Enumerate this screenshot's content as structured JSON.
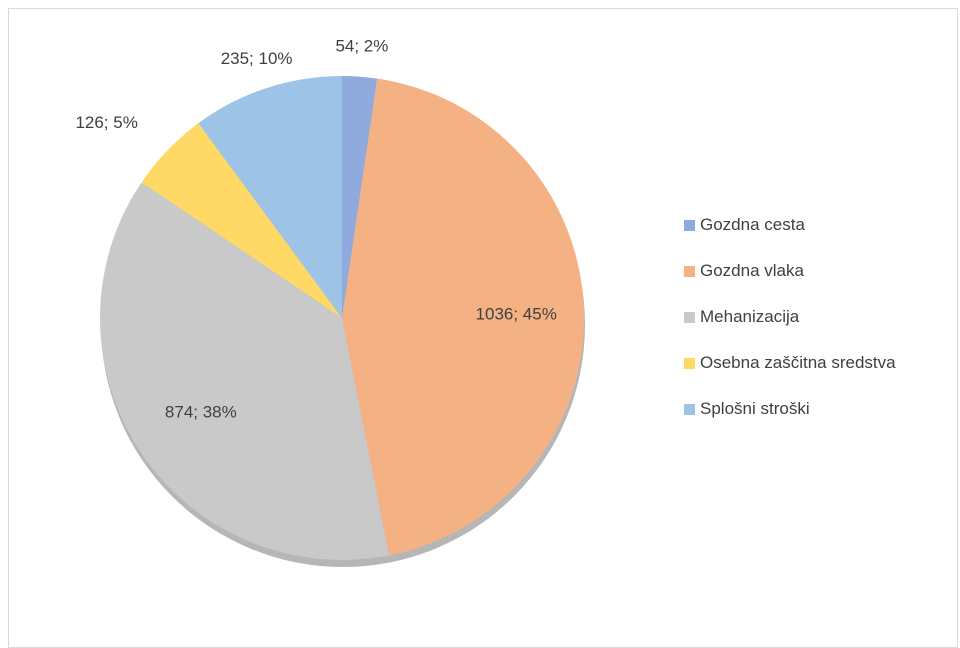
{
  "chart_data": {
    "type": "pie",
    "title": "",
    "legend_position": "right",
    "start_angle_deg": 0,
    "direction": "clockwise",
    "slices": [
      {
        "name": "Gozdna cesta",
        "value": 54,
        "label": "54; 2%",
        "color": "#8faadc"
      },
      {
        "name": "Gozdna vlaka",
        "value": 1036,
        "label": "1036; 45%",
        "color": "#f4b183"
      },
      {
        "name": "Mehanizacija",
        "value": 874,
        "label": "874; 38%",
        "color": "#c9c9c9"
      },
      {
        "name": "Osebna zaščitna sredstva",
        "value": 126,
        "label": "126; 5%",
        "color": "#ffd966"
      },
      {
        "name": "Splošni stroški",
        "value": 235,
        "label": "235; 10%",
        "color": "#9dc3e6"
      }
    ]
  }
}
